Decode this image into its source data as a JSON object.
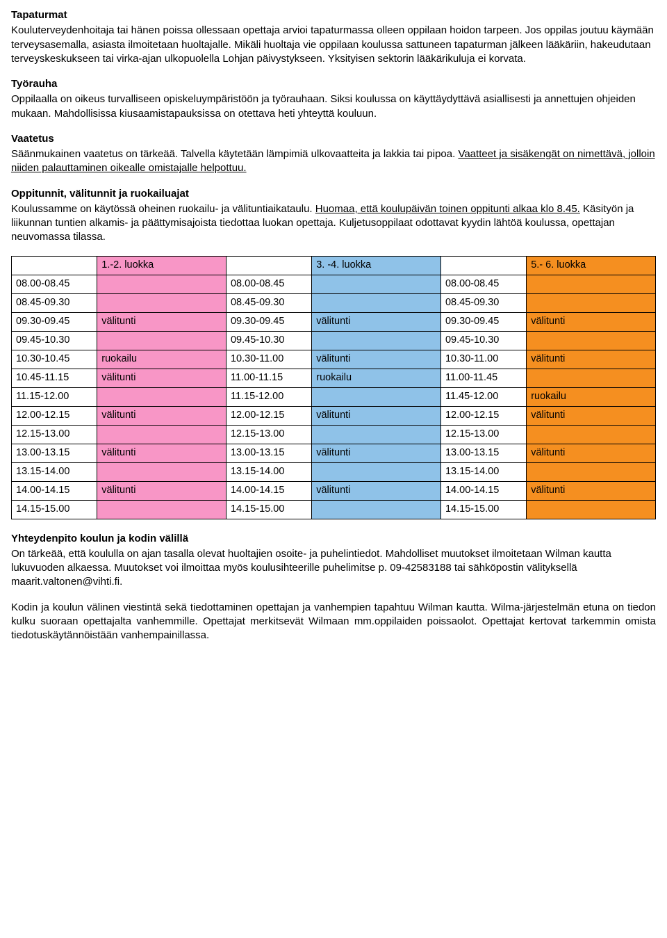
{
  "sections": {
    "tapaturmat": {
      "title": "Tapaturmat",
      "body": "Kouluterveydenhoitaja tai hänen poissa ollessaan opettaja arvioi tapaturmassa olleen oppilaan hoidon tarpeen. Jos oppilas joutuu käymään terveysasemalla, asiasta ilmoitetaan huoltajalle. Mikäli huoltaja vie oppilaan  koulussa sattuneen tapaturman jälkeen lääkäriin, hakeudutaan terveyskeskukseen tai virka-ajan ulkopuolella Lohjan päivystykseen. Yksityisen sektorin lääkärikuluja ei korvata."
    },
    "tyorauha": {
      "title": "Työrauha",
      "body": "Oppilaalla on oikeus turvalliseen opiskeluympäristöön ja työrauhaan. Siksi koulussa on käyttäydyttävä asiallisesti ja annettujen ohjeiden mukaan. Mahdollisissa kiusaamistapauksissa on otettava heti yhteyttä kouluun."
    },
    "vaatetus": {
      "title": "Vaatetus",
      "body_pre": "Säänmukainen vaatetus on tärkeää. Talvella käytetään lämpimiä ulkovaatteita ja lakkia tai pipoa. ",
      "underline": "Vaatteet ja sisäkengät on nimettävä",
      "underline_tail": ", jolloin niiden palauttaminen oikealle omistajalle helpottuu."
    },
    "oppitunnit": {
      "title": "Oppitunnit, välitunnit ja ruokailuajat",
      "pre": "Koulussamme on käytössä oheinen ruokailu- ja välituntiaikataulu. ",
      "u1": "Huomaa, että koulupäivän toinen oppitunti alkaa klo 8.45.",
      "post": " Käsityön ja liikunnan tuntien alkamis- ja päättymisajoista tiedottaa luokan opettaja. Kuljetusoppilaat odottavat kyydin lähtöä koulussa, opettajan neuvomassa tilassa."
    },
    "yhteydenpito": {
      "title": "Yhteydenpito koulun ja kodin välillä",
      "p1": "On tärkeää, että koululla on ajan tasalla olevat huoltajien osoite- ja puhelintiedot. Mahdolliset muutokset ilmoitetaan Wilman kautta lukuvuoden alkaessa. Muutokset voi ilmoittaa myös koulusihteerille puhelimitse p. 09-42583188 tai sähköpostin välityksellä maarit.valtonen@vihti.fi.",
      "p2": "Kodin ja koulun välinen viestintä sekä tiedottaminen opettajan ja vanhempien tapahtuu Wilman kautta. Wilma-järjestelmän etuna on tiedon kulku suoraan opettajalta vanhemmille. Opettajat merkitsevät Wilmaan mm.oppilaiden poissaolot. Opettajat kertovat tarkemmin omista tiedotuskäytännöistään vanhempainillassa."
    }
  },
  "schedule": {
    "colors": {
      "pink": "#f896c6",
      "blue": "#8fc2e8",
      "orange": "#f58f20"
    },
    "headers": [
      "1.-2. luokka",
      "3. -4. luokka",
      "5.- 6. luokka"
    ],
    "rows": [
      {
        "c1_t": "08.00-08.45",
        "c1_l": "",
        "c2_t": "08.00-08.45",
        "c2_l": "",
        "c3_t": "08.00-08.45",
        "c3_l": ""
      },
      {
        "c1_t": "08.45-09.30",
        "c1_l": "",
        "c2_t": "08.45-09.30",
        "c2_l": "",
        "c3_t": "08.45-09.30",
        "c3_l": ""
      },
      {
        "c1_t": "09.30-09.45",
        "c1_l": "välitunti",
        "c2_t": "09.30-09.45",
        "c2_l": "välitunti",
        "c3_t": "09.30-09.45",
        "c3_l": "välitunti"
      },
      {
        "c1_t": "09.45-10.30",
        "c1_l": "",
        "c2_t": "09.45-10.30",
        "c2_l": "",
        "c3_t": "09.45-10.30",
        "c3_l": ""
      },
      {
        "c1_t": "10.30-10.45",
        "c1_l": "ruokailu",
        "c2_t": "10.30-11.00",
        "c2_l": "välitunti",
        "c3_t": "10.30-11.00",
        "c3_l": "välitunti"
      },
      {
        "c1_t": "10.45-11.15",
        "c1_l": "välitunti",
        "c2_t": "11.00-11.15",
        "c2_l": "ruokailu",
        "c3_t": "11.00-11.45",
        "c3_l": ""
      },
      {
        "c1_t": "11.15-12.00",
        "c1_l": "",
        "c2_t": "11.15-12.00",
        "c2_l": "",
        "c3_t": "11.45-12.00",
        "c3_l": "ruokailu"
      },
      {
        "c1_t": "12.00-12.15",
        "c1_l": "välitunti",
        "c2_t": "12.00-12.15",
        "c2_l": "välitunti",
        "c3_t": "12.00-12.15",
        "c3_l": "välitunti"
      },
      {
        "c1_t": "12.15-13.00",
        "c1_l": "",
        "c2_t": "12.15-13.00",
        "c2_l": "",
        "c3_t": "12.15-13.00",
        "c3_l": ""
      },
      {
        "c1_t": "13.00-13.15",
        "c1_l": "välitunti",
        "c2_t": "13.00-13.15",
        "c2_l": "välitunti",
        "c3_t": "13.00-13.15",
        "c3_l": "välitunti"
      },
      {
        "c1_t": "13.15-14.00",
        "c1_l": "",
        "c2_t": "13.15-14.00",
        "c2_l": "",
        "c3_t": "13.15-14.00",
        "c3_l": ""
      },
      {
        "c1_t": "14.00-14.15",
        "c1_l": "välitunti",
        "c2_t": "14.00-14.15",
        "c2_l": "välitunti",
        "c3_t": "14.00-14.15",
        "c3_l": "välitunti"
      },
      {
        "c1_t": "14.15-15.00",
        "c1_l": "",
        "c2_t": "14.15-15.00",
        "c2_l": "",
        "c3_t": "14.15-15.00",
        "c3_l": ""
      }
    ]
  }
}
